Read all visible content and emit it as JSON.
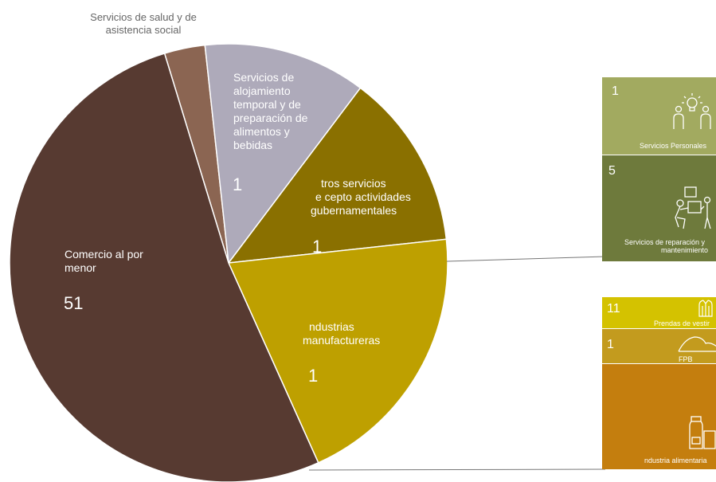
{
  "chart_data": {
    "type": "pie",
    "slices": [
      {
        "label": "Servicios de salud y de asistencia social",
        "value": null,
        "color": "#8b6552"
      },
      {
        "label": "Servicios de alojamiento temporal y de preparación de alimentos y bebidas",
        "value_label": "1",
        "color": "#aeaaba"
      },
      {
        "label": "tros servicios e cepto actividades gubernamentales",
        "value_label": "1",
        "color": "#8a7000"
      },
      {
        "label": "ndustrias manufactureras",
        "value_label": "1",
        "color": "#bea000"
      },
      {
        "label": "Comercio al por menor",
        "value_label": "51",
        "color": "#573a31"
      }
    ],
    "approx_shares": [
      0.03,
      0.12,
      0.13,
      0.2,
      0.52
    ],
    "breakdowns": [
      {
        "parent": "tros servicios e cepto actividades gubernamentales",
        "items": [
          {
            "value_label": "1",
            "label": "Servicios Personales",
            "icon": "people-lightbulb-icon",
            "color": "#a2aa60"
          },
          {
            "value_label": "5",
            "label": "Servicios de reparación y mantenimiento",
            "icon": "repair-worker-icon",
            "color": "#6e7a3c"
          }
        ]
      },
      {
        "parent": "ndustrias manufactureras",
        "items": [
          {
            "value_label": "11",
            "label": "Prendas de vestir",
            "icon": "jacket-icon",
            "color": "#d4c200"
          },
          {
            "value_label": "1",
            "label": "FPB",
            "icon": "hills-icon",
            "color": "#c39b1e"
          },
          {
            "value_label": "",
            "label": "ndustria alimentaria",
            "icon": "food-jar-icon",
            "color": "#c47e0e"
          }
        ]
      }
    ]
  },
  "labels": {
    "health_line1": "Servicios de salud y de",
    "health_line2": "asistencia social",
    "lodging_l1": "Servicios de",
    "lodging_l2": "alojamiento",
    "lodging_l3": "temporal y de",
    "lodging_l4": "preparación de",
    "lodging_l5": "alimentos y",
    "lodging_l6": "bebidas",
    "lodging_val": "1",
    "other_l1": "tros servicios",
    "other_l2": "e cepto actividades",
    "other_l3": "gubernamentales",
    "other_val": "1",
    "manuf_l1": "ndustrias",
    "manuf_l2": "manufactureras",
    "manuf_val": "1",
    "retail_l1": "Comercio al por",
    "retail_l2": "menor",
    "retail_val": "51"
  },
  "boxes": {
    "personal_val": "1",
    "personal_label": "Servicios Personales",
    "repair_val": "5",
    "repair_label_1": "Servicios de reparación y",
    "repair_label_2": "mantenimiento",
    "clothing_val": "11",
    "clothing_label": "Prendas de vestir",
    "fpb_val": "1",
    "fpb_label": "FPB",
    "food_label": "ndustria alimentaria"
  }
}
